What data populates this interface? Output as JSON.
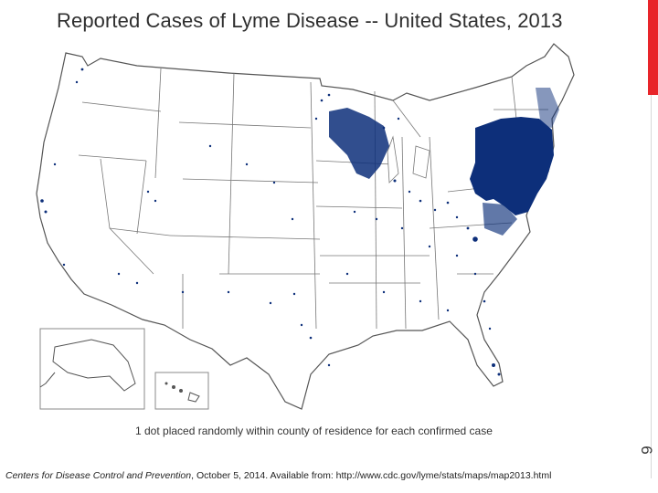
{
  "title": "Reported Cases of Lyme Disease -- United States, 2013",
  "legend_note": "1 dot placed randomly within county of residence for each confirmed case",
  "slide_number": "6",
  "citation": {
    "source": "Centers for Disease Control and Prevention",
    "rest": ", October 5, 2014. Available from: http://www.cdc.gov/lyme/stats/maps/map2013.html"
  },
  "colors": {
    "accent": "#e8252a",
    "case_dots": "#0d2f7a",
    "state_lines": "#555555",
    "background": "#ffffff"
  },
  "map": {
    "region": "United States",
    "insets": [
      "Alaska",
      "Hawaii"
    ],
    "symbol": "dot-per-confirmed-case"
  }
}
